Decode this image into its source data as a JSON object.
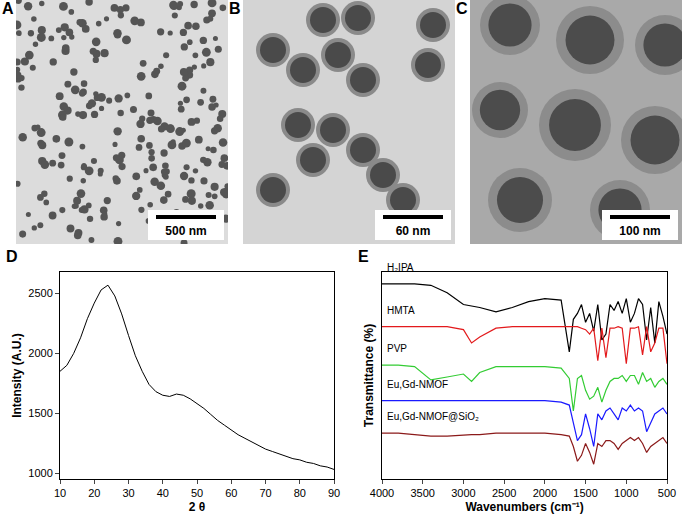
{
  "panels": [
    {
      "label": "A",
      "scale_bar": "500 nm"
    },
    {
      "label": "B",
      "scale_bar": "60 nm"
    },
    {
      "label": "C",
      "scale_bar": "100 nm"
    }
  ],
  "chart_data": [
    {
      "type": "line",
      "label": "D",
      "x_label": "2 θ",
      "y_label": "Intensity (A.U.)",
      "color": "#000000",
      "x": [
        10,
        12,
        14,
        16,
        18,
        20,
        22,
        24,
        26,
        28,
        30,
        32,
        34,
        36,
        38,
        40,
        42,
        44,
        46,
        48,
        50,
        52,
        54,
        56,
        58,
        60,
        62,
        64,
        66,
        68,
        70,
        72,
        74,
        76,
        78,
        80,
        82,
        84,
        86,
        88,
        90
      ],
      "values": [
        1850,
        1900,
        2000,
        2130,
        2290,
        2420,
        2530,
        2570,
        2480,
        2330,
        2150,
        1980,
        1850,
        1740,
        1680,
        1650,
        1640,
        1660,
        1650,
        1620,
        1580,
        1540,
        1490,
        1440,
        1400,
        1360,
        1320,
        1290,
        1260,
        1230,
        1200,
        1180,
        1160,
        1140,
        1120,
        1110,
        1090,
        1080,
        1060,
        1050,
        1030
      ],
      "xlim": [
        10,
        90
      ],
      "xticks": [
        10,
        20,
        30,
        40,
        50,
        60,
        70,
        80,
        90
      ],
      "ylim": [
        950,
        2680
      ],
      "yticks": [
        1000,
        1500,
        2000,
        2500
      ]
    },
    {
      "type": "line",
      "label": "E",
      "x_label": "Wavenumbers (cm⁻¹)",
      "y_label": "Transmittance (%)",
      "tick_labels": "x",
      "x": [
        4000,
        3800,
        3600,
        3400,
        3200,
        3000,
        2900,
        2800,
        2600,
        2400,
        2200,
        2000,
        1800,
        1700,
        1650,
        1600,
        1550,
        1500,
        1450,
        1400,
        1350,
        1300,
        1250,
        1200,
        1150,
        1100,
        1050,
        1000,
        950,
        900,
        850,
        800,
        750,
        700,
        650,
        600,
        550,
        500
      ],
      "xlim": [
        4000,
        500
      ],
      "xticks": [
        4000,
        3500,
        3000,
        2500,
        2000,
        1500,
        1000,
        500
      ],
      "ylim": [
        3,
        10
      ],
      "series": [
        {
          "name": "H₂IPA",
          "color": "#000000",
          "values": [
            9.6,
            9.6,
            9.6,
            9.55,
            9.3,
            8.9,
            8.85,
            8.8,
            8.65,
            8.8,
            9.0,
            9.1,
            9.05,
            7.3,
            8.4,
            8.6,
            8.9,
            8.3,
            8.6,
            8.0,
            8.9,
            7.7,
            7.9,
            8.9,
            8.7,
            9.0,
            8.6,
            9.1,
            8.3,
            8.6,
            9.1,
            8.9,
            7.7,
            8.8,
            7.6,
            9.0,
            8.5,
            7.9
          ]
        },
        {
          "name": "HMTA",
          "color": "#e31a1c",
          "values": [
            8.15,
            8.15,
            8.15,
            8.15,
            8.15,
            8.05,
            7.6,
            7.8,
            8.1,
            8.15,
            8.15,
            8.15,
            8.15,
            8.15,
            8.15,
            8.15,
            8.1,
            8.05,
            7.9,
            8.1,
            7.0,
            8.1,
            7.1,
            8.1,
            8.1,
            8.15,
            8.1,
            6.9,
            8.1,
            8.1,
            8.15,
            7.2,
            8.15,
            7.3,
            7.6,
            8.1,
            8.1,
            6.9
          ]
        },
        {
          "name": "PVP",
          "color": "#33cc33",
          "values": [
            6.85,
            6.85,
            6.8,
            6.35,
            6.45,
            6.55,
            6.3,
            6.6,
            6.8,
            6.8,
            6.8,
            6.8,
            6.75,
            6.4,
            5.3,
            6.4,
            6.5,
            6.0,
            5.7,
            5.8,
            6.1,
            5.6,
            6.0,
            6.3,
            6.4,
            6.4,
            6.5,
            6.3,
            6.5,
            6.5,
            6.2,
            6.6,
            6.3,
            6.4,
            6.1,
            6.3,
            6.4,
            6.2
          ]
        },
        {
          "name": "Eu,Gd-NMOF",
          "color": "#1a1aff",
          "values": [
            5.65,
            5.65,
            5.65,
            5.65,
            5.65,
            5.65,
            5.65,
            5.65,
            5.65,
            5.65,
            5.65,
            5.65,
            5.6,
            5.5,
            4.9,
            4.3,
            4.5,
            5.2,
            4.7,
            4.1,
            5.2,
            5.0,
            5.3,
            5.4,
            5.2,
            5.0,
            5.4,
            5.3,
            5.5,
            5.3,
            5.4,
            5.3,
            4.6,
            4.9,
            5.2,
            5.3,
            5.4,
            5.2
          ]
        },
        {
          "name": "Eu,Gd-NMOF@SiO₂",
          "color": "#8b1a1a",
          "values": [
            4.55,
            4.55,
            4.5,
            4.45,
            4.45,
            4.5,
            4.5,
            4.5,
            4.55,
            4.55,
            4.55,
            4.55,
            4.5,
            4.45,
            4.1,
            3.6,
            3.8,
            4.2,
            3.9,
            3.5,
            4.2,
            4.1,
            4.3,
            4.3,
            4.2,
            4.0,
            4.2,
            4.3,
            4.4,
            4.3,
            4.4,
            4.2,
            3.9,
            4.1,
            4.2,
            4.3,
            4.4,
            4.2
          ]
        }
      ]
    }
  ]
}
